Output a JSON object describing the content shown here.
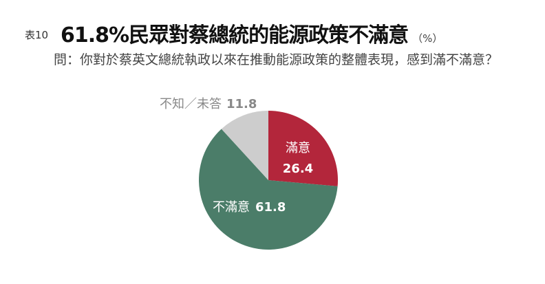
{
  "header": {
    "table_label": "表10",
    "title": "61.8%民眾對蔡總統的能源政策不滿意",
    "unit": "（%）",
    "question": "問：你對於蔡英文總統執政以來在推動能源政策的整體表現，感到滿不滿意？"
  },
  "chart_data": {
    "type": "pie",
    "start": "top, clockwise",
    "slices": [
      {
        "name": "滿意",
        "value": 26.4,
        "color": "#b3263b",
        "label_color": "#ffffff"
      },
      {
        "name": "不滿意",
        "value": 61.8,
        "color": "#4b7d69",
        "label_color": "#ffffff"
      },
      {
        "name": "不知／未答",
        "value": 11.8,
        "color": "#cdcdcd",
        "label_color": "#888888"
      }
    ]
  }
}
